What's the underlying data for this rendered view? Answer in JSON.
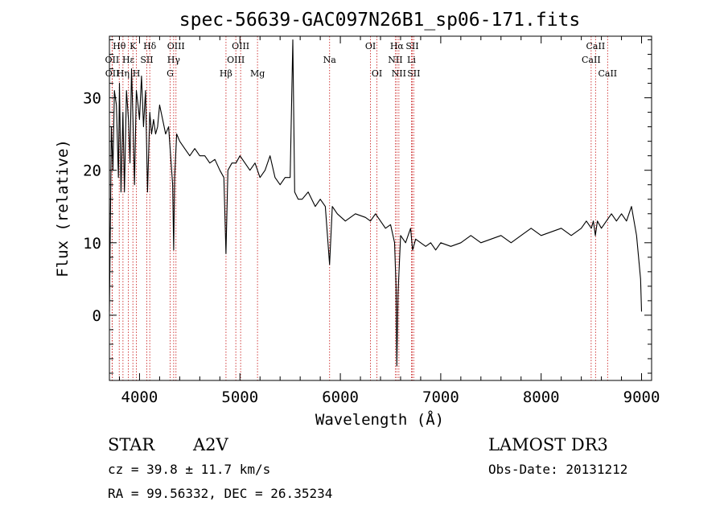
{
  "chart_data": {
    "type": "line",
    "title": "spec-56639-GAC097N26B1_sp06-171.fits",
    "xlabel": "Wavelength (Å)",
    "ylabel": "Flux (relative)",
    "xlim": [
      3700,
      9100
    ],
    "ylim": [
      -9,
      38.5
    ],
    "xticks": [
      4000,
      5000,
      6000,
      7000,
      8000,
      9000
    ],
    "yticks": [
      0,
      10,
      20,
      30
    ],
    "grid": false,
    "series": [
      {
        "name": "spectrum",
        "x": [
          3700,
          3720,
          3735,
          3750,
          3770,
          3790,
          3800,
          3815,
          3835,
          3850,
          3870,
          3890,
          3905,
          3920,
          3935,
          3950,
          3968,
          3985,
          4000,
          4020,
          4040,
          4060,
          4080,
          4102,
          4120,
          4140,
          4160,
          4180,
          4200,
          4230,
          4260,
          4290,
          4310,
          4330,
          4340,
          4350,
          4370,
          4400,
          4450,
          4500,
          4550,
          4600,
          4650,
          4700,
          4750,
          4800,
          4840,
          4861,
          4880,
          4920,
          4960,
          5000,
          5050,
          5100,
          5150,
          5200,
          5250,
          5300,
          5350,
          5400,
          5450,
          5500,
          5527,
          5545,
          5580,
          5620,
          5680,
          5750,
          5800,
          5850,
          5893,
          5920,
          5970,
          6050,
          6150,
          6250,
          6300,
          6350,
          6400,
          6450,
          6500,
          6540,
          6555,
          6563,
          6575,
          6600,
          6650,
          6700,
          6720,
          6750,
          6800,
          6850,
          6900,
          6950,
          7000,
          7100,
          7200,
          7300,
          7400,
          7500,
          7600,
          7700,
          7800,
          7900,
          8000,
          8100,
          8200,
          8300,
          8400,
          8450,
          8500,
          8520,
          8540,
          8560,
          8600,
          8650,
          8700,
          8750,
          8800,
          8850,
          8900,
          8950,
          8990,
          9000
        ],
        "values": [
          0.5,
          26,
          20,
          31,
          29,
          19,
          32,
          17,
          28,
          17,
          31,
          27,
          21,
          34,
          27,
          18,
          31,
          29,
          27,
          33,
          26,
          31,
          17,
          28,
          25,
          27,
          25,
          26,
          29,
          27,
          25,
          26,
          22,
          18,
          9,
          19,
          25,
          24,
          23,
          22,
          23,
          22,
          22,
          21,
          21.5,
          20,
          19,
          8.5,
          20,
          21,
          21,
          22,
          21,
          20,
          21,
          19,
          20,
          22,
          19,
          18,
          19,
          19,
          38,
          17,
          16,
          16,
          17,
          15,
          16,
          15,
          7,
          15,
          14,
          13,
          14,
          13.5,
          13,
          14,
          13,
          12,
          12.5,
          10,
          4,
          -7,
          3,
          11,
          10,
          12,
          9,
          10.5,
          10,
          9.5,
          10,
          9,
          10,
          9.5,
          10,
          11,
          10,
          10.5,
          11,
          10,
          11,
          12,
          11,
          11.5,
          12,
          11,
          12,
          13,
          12,
          13,
          11,
          13,
          12,
          13,
          14,
          13,
          14,
          13,
          15,
          11,
          5,
          0.5
        ]
      }
    ],
    "lines": [
      {
        "label": "Hθ",
        "x": 3798,
        "row": 0
      },
      {
        "label": "OII",
        "x": 3727,
        "row": 1
      },
      {
        "label": "OII",
        "x": 3729,
        "row": 2
      },
      {
        "label": "Hη",
        "x": 3835,
        "row": 2
      },
      {
        "label": "Hε",
        "x": 3889,
        "row": 1
      },
      {
        "label": "K",
        "x": 3934,
        "row": 0
      },
      {
        "label": "H",
        "x": 3969,
        "row": 2
      },
      {
        "label": "SII",
        "x": 4072,
        "row": 1
      },
      {
        "label": "Hδ",
        "x": 4102,
        "row": 0
      },
      {
        "label": "OIII",
        "x": 4363,
        "row": 0
      },
      {
        "label": "Hγ",
        "x": 4340,
        "row": 1
      },
      {
        "label": "G",
        "x": 4305,
        "row": 2
      },
      {
        "label": "Hβ",
        "x": 4861,
        "row": 2
      },
      {
        "label": "OIII",
        "x": 5007,
        "row": 0
      },
      {
        "label": "OIII",
        "x": 4959,
        "row": 1
      },
      {
        "label": "Mg",
        "x": 5175,
        "row": 2
      },
      {
        "label": "Na",
        "x": 5893,
        "row": 1
      },
      {
        "label": "OI",
        "x": 6300,
        "row": 0
      },
      {
        "label": "OI",
        "x": 6364,
        "row": 2
      },
      {
        "label": "Hα",
        "x": 6563,
        "row": 0
      },
      {
        "label": "NII",
        "x": 6548,
        "row": 1
      },
      {
        "label": "NII",
        "x": 6583,
        "row": 2
      },
      {
        "label": "SII",
        "x": 6716,
        "row": 0
      },
      {
        "label": "Li",
        "x": 6708,
        "row": 1
      },
      {
        "label": "SII",
        "x": 6731,
        "row": 2
      },
      {
        "label": "CaII",
        "x": 8542,
        "row": 0
      },
      {
        "label": "CaII",
        "x": 8498,
        "row": 1
      },
      {
        "label": "CaII",
        "x": 8662,
        "row": 2
      }
    ]
  },
  "info": {
    "object_class": "STAR",
    "subclass": "A2V",
    "survey": "LAMOST DR3",
    "cz": "cz = 39.8 ± 11.7 km/s",
    "obs_date": "Obs-Date: 20131212",
    "coords": "RA =  99.56332, DEC =  26.35234"
  },
  "colors": {
    "axis": "#000000",
    "spectrum": "#000000",
    "line_marker": "#cc2a2a"
  }
}
